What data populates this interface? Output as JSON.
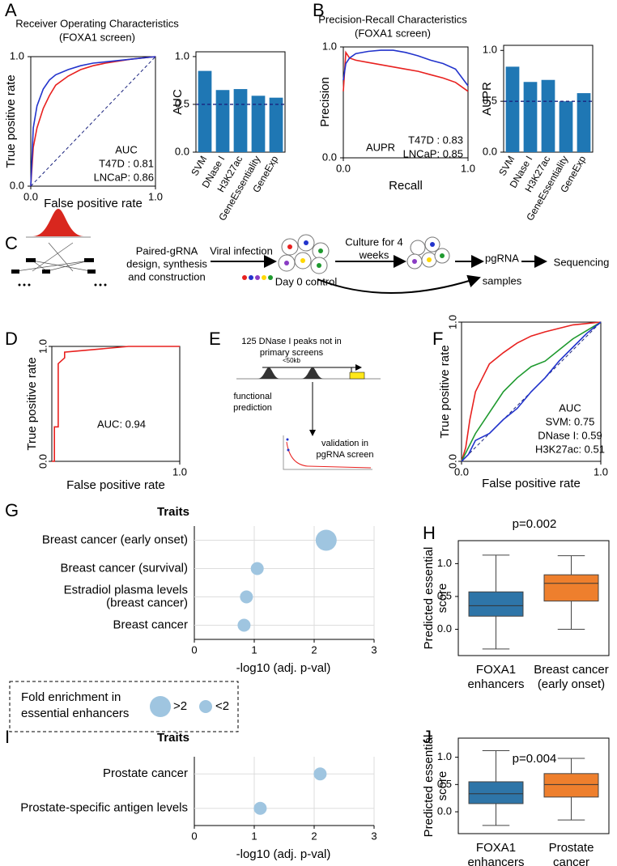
{
  "panel_labels": [
    "A",
    "B",
    "C",
    "D",
    "E",
    "F",
    "G",
    "H",
    "I",
    "J"
  ],
  "diagram_c": {
    "design": [
      "Paired-gRNA",
      "design, synthesis",
      "and construction"
    ],
    "infection": "Viral infection",
    "control": "Day 0 control",
    "culture": [
      "Culture for 4",
      "weeks"
    ],
    "samples": [
      "pgRNA",
      "samples"
    ],
    "sequencing": "Sequencing"
  },
  "diagram_e": {
    "peaks": [
      "125 DNase I peaks not in",
      "primary screens"
    ],
    "distance": "<50kb",
    "prediction": [
      "functional",
      "prediction"
    ],
    "validation": [
      "validation in",
      "pgRNA screen"
    ]
  },
  "chart_data": [
    {
      "type": "line",
      "title": "Receiver Operating Characteristics",
      "subtitle": "(FOXA1 screen)",
      "xlabel": "False positive rate",
      "ylabel": "True positive rate",
      "xlim": [
        0,
        1
      ],
      "ylim": [
        0,
        1
      ],
      "diagonal": true,
      "xticks": [
        {
          "value": 0,
          "label": "0.0"
        },
        {
          "value": 1,
          "label": "1.0"
        }
      ],
      "yticks": [
        {
          "value": 0,
          "label": "0.0"
        },
        {
          "value": 1,
          "label": "1.0"
        }
      ],
      "series": [
        {
          "color": "#e8211f",
          "x": [
            0,
            0.02,
            0.05,
            0.1,
            0.15,
            0.2,
            0.3,
            0.4,
            0.5,
            0.6,
            0.8,
            1.0
          ],
          "values": [
            0,
            0.3,
            0.45,
            0.6,
            0.7,
            0.78,
            0.85,
            0.9,
            0.93,
            0.95,
            0.98,
            1.0
          ]
        },
        {
          "color": "#2233cc",
          "x": [
            0,
            0.02,
            0.05,
            0.1,
            0.15,
            0.2,
            0.3,
            0.4,
            0.5,
            0.6,
            0.8,
            1.0
          ],
          "values": [
            0,
            0.45,
            0.62,
            0.75,
            0.82,
            0.86,
            0.9,
            0.93,
            0.95,
            0.96,
            0.98,
            1.0
          ]
        }
      ],
      "annotations": [
        {
          "text": "AUC",
          "color": "#000000"
        },
        {
          "text": "T47D : 0.81",
          "color": "#e8211f"
        },
        {
          "text": "LNCaP: 0.86",
          "color": "#2233cc"
        }
      ]
    },
    {
      "type": "bar",
      "ylabel": "AUC",
      "categories": [
        "SVM",
        "DNase I",
        "H3K27ac",
        "GeneEssentiality",
        "GeneExp"
      ],
      "values": [
        0.85,
        0.65,
        0.66,
        0.59,
        0.57
      ],
      "color": "#1f77b4",
      "ylim": [
        0,
        1.05
      ],
      "yticks": [
        {
          "value": 0,
          "label": "0.0"
        },
        {
          "value": 0.5,
          "label": "0.5"
        },
        {
          "value": 1,
          "label": "1.0"
        }
      ],
      "hline": 0.5
    },
    {
      "type": "line",
      "title": "Precision-Recall Characteristics",
      "subtitle": "(FOXA1 screen)",
      "xlabel": "Recall",
      "ylabel": "Precision",
      "xlim": [
        0,
        1
      ],
      "ylim": [
        0,
        1
      ],
      "diagonal": false,
      "xticks": [
        {
          "value": 0,
          "label": "0.0"
        },
        {
          "value": 1,
          "label": "1.0"
        }
      ],
      "yticks": [
        {
          "value": 0,
          "label": "0.0"
        },
        {
          "value": 1,
          "label": "1.0"
        }
      ],
      "series": [
        {
          "color": "#e8211f",
          "x": [
            0,
            0.02,
            0.05,
            0.1,
            0.2,
            0.3,
            0.4,
            0.5,
            0.6,
            0.7,
            0.8,
            0.9,
            1.0
          ],
          "values": [
            0.6,
            0.95,
            0.9,
            0.88,
            0.86,
            0.84,
            0.82,
            0.8,
            0.78,
            0.75,
            0.72,
            0.68,
            0.6
          ]
        },
        {
          "color": "#2233cc",
          "x": [
            0,
            0.02,
            0.05,
            0.1,
            0.2,
            0.3,
            0.4,
            0.5,
            0.6,
            0.7,
            0.8,
            0.9,
            1.0
          ],
          "values": [
            0.7,
            0.85,
            0.9,
            0.94,
            0.96,
            0.97,
            0.97,
            0.95,
            0.92,
            0.88,
            0.85,
            0.8,
            0.65
          ]
        }
      ],
      "annotations": [
        {
          "text": "AUPR",
          "color": "#000000"
        },
        {
          "text": "T47D : 0.83",
          "color": "#e8211f"
        },
        {
          "text": "LNCaP: 0.85",
          "color": "#2233cc"
        }
      ]
    },
    {
      "type": "bar",
      "ylabel": "AUPR",
      "categories": [
        "SVM",
        "DNase I",
        "H3K27ac",
        "GeneEssentiality",
        "GeneExp"
      ],
      "values": [
        0.84,
        0.69,
        0.71,
        0.5,
        0.58
      ],
      "color": "#1f77b4",
      "ylim": [
        0,
        1.05
      ],
      "yticks": [
        {
          "value": 0,
          "label": "0.0"
        },
        {
          "value": 0.5,
          "label": "0.5"
        },
        {
          "value": 1,
          "label": "1.0"
        }
      ],
      "hline": 0.5
    },
    {
      "type": "line",
      "xlabel": "False positive rate",
      "ylabel": "True positive rate",
      "xlim": [
        0,
        1
      ],
      "ylim": [
        0,
        1
      ],
      "diagonal": false,
      "xticks": [
        {
          "value": 1,
          "label": "1.0"
        }
      ],
      "yticks": [
        {
          "value": 0,
          "label": "0.0"
        },
        {
          "value": 1,
          "label": "1.0"
        }
      ],
      "series": [
        {
          "color": "#e8211f",
          "x": [
            0,
            0.02,
            0.02,
            0.05,
            0.05,
            0.1,
            0.1,
            0.2,
            0.6,
            1.0
          ],
          "values": [
            0,
            0,
            0.3,
            0.3,
            0.85,
            0.9,
            0.95,
            0.96,
            1.0,
            1.0
          ]
        }
      ],
      "annotations": [
        {
          "text": "AUC: 0.94",
          "color": "#e8211f"
        }
      ]
    },
    {
      "type": "line",
      "xlabel": "False positive rate",
      "ylabel": "True positive rate",
      "xlim": [
        0,
        1
      ],
      "ylim": [
        0,
        1
      ],
      "diagonal": true,
      "xticks": [
        {
          "value": 0,
          "label": "0.0"
        },
        {
          "value": 1,
          "label": "1.0"
        }
      ],
      "yticks": [
        {
          "value": 0,
          "label": "0.0"
        },
        {
          "value": 1,
          "label": "1.0"
        }
      ],
      "series": [
        {
          "color": "#e8211f",
          "x": [
            0,
            0.03,
            0.06,
            0.1,
            0.15,
            0.2,
            0.3,
            0.4,
            0.5,
            0.6,
            0.8,
            1.0
          ],
          "values": [
            0,
            0.1,
            0.3,
            0.5,
            0.6,
            0.7,
            0.78,
            0.85,
            0.9,
            0.93,
            0.98,
            1.0
          ]
        },
        {
          "color": "#1f9a2f",
          "x": [
            0,
            0.05,
            0.1,
            0.2,
            0.3,
            0.4,
            0.5,
            0.6,
            0.7,
            0.8,
            0.9,
            1.0
          ],
          "values": [
            0,
            0.1,
            0.2,
            0.35,
            0.5,
            0.6,
            0.68,
            0.72,
            0.8,
            0.88,
            0.94,
            1.0
          ]
        },
        {
          "color": "#2233cc",
          "x": [
            0,
            0.05,
            0.1,
            0.2,
            0.3,
            0.4,
            0.5,
            0.6,
            0.7,
            0.8,
            0.9,
            1.0
          ],
          "values": [
            0,
            0.05,
            0.15,
            0.2,
            0.3,
            0.38,
            0.5,
            0.6,
            0.72,
            0.82,
            0.92,
            1.0
          ]
        }
      ],
      "annotations": [
        {
          "text": "AUC",
          "color": "#000000"
        },
        {
          "text": "SVM: 0.75",
          "color": "#e8211f"
        },
        {
          "text": "DNase I: 0.59",
          "color": "#1f9a2f"
        },
        {
          "text": "H3K27ac: 0.51",
          "color": "#2233cc"
        }
      ]
    },
    {
      "type": "bubble",
      "title": "Traits",
      "xlabel": "-log10 (adj. p-val)",
      "categories": [
        "Breast cancer (early onset)",
        "Breast cancer (survival)",
        [
          "Estradiol plasma levels",
          "(breast cancer)"
        ],
        "Breast cancer"
      ],
      "values": [
        2.2,
        1.05,
        0.87,
        0.83
      ],
      "size_group": [
        ">2",
        "<2",
        "<2",
        "<2"
      ],
      "color": "#9fc5e0",
      "xlim": [
        0,
        3
      ],
      "xticks": [
        0,
        1,
        2,
        3
      ],
      "grid": true,
      "size_legend": {
        "title": [
          "Fold enrichment in",
          "essential enhancers"
        ],
        "labels": [
          ">2",
          "<2"
        ]
      }
    },
    {
      "type": "box",
      "title": "p=0.002",
      "ylabel": [
        "Predicted essential",
        "score"
      ],
      "categories": [
        [
          "FOXA1",
          "enhancers"
        ],
        [
          "Breast cancer",
          "(early onset)"
        ]
      ],
      "colors": [
        "#2e75a8",
        "#ee7f2d"
      ],
      "boxes": [
        {
          "whislo": -0.3,
          "q1": 0.2,
          "med": 0.36,
          "q3": 0.57,
          "whishi": 1.13
        },
        {
          "whislo": 0.0,
          "q1": 0.43,
          "med": 0.7,
          "q3": 0.83,
          "whishi": 1.12
        }
      ],
      "ylim": [
        -0.4,
        1.35
      ],
      "yticks": [
        {
          "value": 0,
          "label": "0.0"
        },
        {
          "value": 0.5,
          "label": "0.5"
        },
        {
          "value": 1,
          "label": "1.0"
        }
      ]
    },
    {
      "type": "bubble",
      "title": "Traits",
      "xlabel": "-log10 (adj. p-val)",
      "categories": [
        "Prostate cancer",
        "Prostate-specific antigen levels"
      ],
      "values": [
        2.1,
        1.1
      ],
      "size_group": [
        "<2",
        "<2"
      ],
      "color": "#9fc5e0",
      "xlim": [
        0,
        3
      ],
      "xticks": [
        0,
        1,
        2,
        3
      ],
      "grid": true
    },
    {
      "type": "box",
      "title": "p=0.004",
      "ylabel": [
        "Predicted essential",
        "score"
      ],
      "categories": [
        [
          "FOXA1",
          "enhancers"
        ],
        [
          "Prostate",
          "cancer"
        ]
      ],
      "colors": [
        "#2e75a8",
        "#ee7f2d"
      ],
      "boxes": [
        {
          "whislo": -0.25,
          "q1": 0.15,
          "med": 0.33,
          "q3": 0.55,
          "whishi": 1.12
        },
        {
          "whislo": -0.15,
          "q1": 0.27,
          "med": 0.5,
          "q3": 0.7,
          "whishi": 0.98
        }
      ],
      "ylim": [
        -0.4,
        1.35
      ],
      "yticks": [
        {
          "value": 0,
          "label": "0.0"
        },
        {
          "value": 0.5,
          "label": "0.5"
        },
        {
          "value": 1,
          "label": "1.0"
        }
      ]
    }
  ]
}
